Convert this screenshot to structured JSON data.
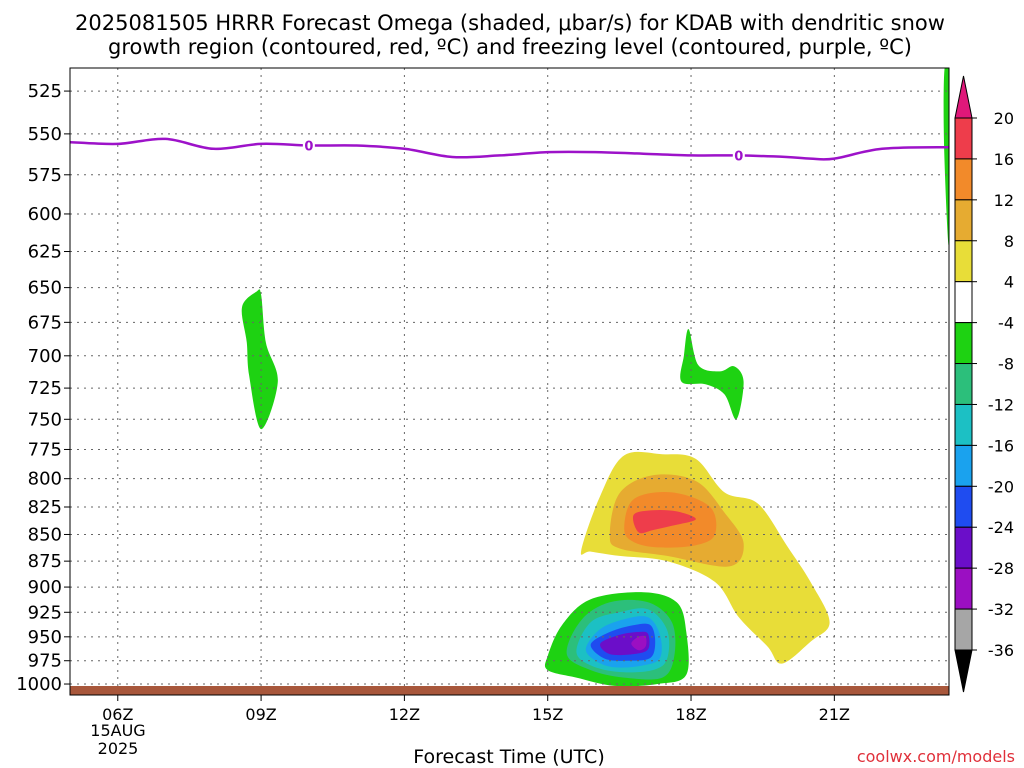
{
  "chart_data": {
    "type": "contour",
    "title_lines": [
      "2025081505 HRRR Forecast Omega (shaded, μbar/s) for KDAB with dendritic snow",
      "growth region (contoured, red, ºC) and freezing level (contoured, purple, ºC)"
    ],
    "xlabel": "Forecast Time (UTC)",
    "ylabel": "",
    "x_ticks": [
      "06Z",
      "09Z",
      "12Z",
      "15Z",
      "18Z",
      "21Z"
    ],
    "x_tick_hours": [
      6,
      9,
      12,
      15,
      18,
      21
    ],
    "x_date_label": [
      "15AUG",
      "2025"
    ],
    "x_range_hours": [
      5,
      23.4
    ],
    "y_ticks": [
      525,
      550,
      575,
      600,
      625,
      650,
      675,
      700,
      725,
      750,
      775,
      800,
      825,
      850,
      875,
      900,
      925,
      950,
      975,
      1000
    ],
    "y_range": [
      512,
      1012
    ],
    "y_scale": "log-pressure",
    "grid": true,
    "colorbar": {
      "levels": [
        "20",
        "16",
        "12",
        "8",
        "4",
        "-4",
        "-8",
        "-12",
        "-16",
        "-20",
        "-24",
        "-28",
        "-32",
        "-36"
      ],
      "colors": [
        "#ee3d4b",
        "#f28a2a",
        "#e6ab31",
        "#e8dd38",
        "#ffffff",
        "#1ed212",
        "#2cbf7b",
        "#1cc0c4",
        "#1aa2ee",
        "#1f4cf0",
        "#6b0ec9",
        "#9b0fc2",
        "#a6a6a6"
      ],
      "top_color": "#e0187a",
      "bottom_color": "#000000"
    },
    "freezing_level": {
      "label": "0",
      "color": "#9d12c9",
      "label_hours": [
        10,
        19
      ],
      "points": [
        [
          5,
          555
        ],
        [
          6,
          556
        ],
        [
          7,
          553
        ],
        [
          8,
          559
        ],
        [
          9,
          556
        ],
        [
          10,
          557
        ],
        [
          11,
          557
        ],
        [
          12,
          559
        ],
        [
          13,
          564
        ],
        [
          14,
          563
        ],
        [
          15,
          561
        ],
        [
          16,
          561
        ],
        [
          17,
          562
        ],
        [
          18,
          563
        ],
        [
          19,
          563
        ],
        [
          20,
          564
        ],
        [
          20.5,
          565
        ],
        [
          21,
          565
        ],
        [
          22,
          559
        ],
        [
          23.4,
          558
        ]
      ]
    },
    "omega_regions": [
      {
        "name": "green-09z",
        "value": "-4 to -8",
        "color": "#1ed212",
        "points": [
          [
            8.6,
            664
          ],
          [
            8.9,
            653
          ],
          [
            9.0,
            655
          ],
          [
            9.1,
            690
          ],
          [
            9.35,
            720
          ],
          [
            9.0,
            758
          ],
          [
            8.75,
            715
          ],
          [
            8.7,
            690
          ]
        ]
      },
      {
        "name": "green-18z",
        "value": "-4 to -8",
        "color": "#1ed212",
        "points": [
          [
            17.8,
            720
          ],
          [
            17.85,
            700
          ],
          [
            17.95,
            680
          ],
          [
            18.15,
            707
          ],
          [
            18.6,
            712
          ],
          [
            18.9,
            708
          ],
          [
            19.1,
            720
          ],
          [
            18.95,
            750
          ],
          [
            18.7,
            730
          ],
          [
            18.3,
            722
          ]
        ]
      },
      {
        "name": "green-top-right",
        "value": "-4 to -8",
        "color": "#1ed212",
        "points": [
          [
            23.3,
            515
          ],
          [
            23.4,
            512
          ],
          [
            23.4,
            620
          ],
          [
            23.3,
            560
          ]
        ]
      },
      {
        "name": "yellow-main",
        "value": "4 to 8",
        "color": "#e8dd38",
        "points": [
          [
            15.7,
            865
          ],
          [
            16.1,
            815
          ],
          [
            16.6,
            780
          ],
          [
            17.4,
            779
          ],
          [
            18.1,
            783
          ],
          [
            18.7,
            812
          ],
          [
            19.4,
            822
          ],
          [
            20,
            860
          ],
          [
            20.5,
            895
          ],
          [
            20.9,
            935
          ],
          [
            20.5,
            955
          ],
          [
            19.9,
            978
          ],
          [
            19.6,
            960
          ],
          [
            19.0,
            930
          ],
          [
            18.5,
            895
          ],
          [
            17.5,
            875
          ],
          [
            16.5,
            870
          ],
          [
            15.9,
            866
          ]
        ]
      },
      {
        "name": "orange-light",
        "value": "8 to 12",
        "color": "#e6ab31",
        "points": [
          [
            16.3,
            850
          ],
          [
            16.5,
            813
          ],
          [
            17.2,
            797
          ],
          [
            18.1,
            802
          ],
          [
            18.7,
            830
          ],
          [
            19.1,
            858
          ],
          [
            18.8,
            880
          ],
          [
            17.5,
            870
          ],
          [
            16.5,
            863
          ]
        ]
      },
      {
        "name": "orange-dark",
        "value": "12 to 16",
        "color": "#f28a2a",
        "points": [
          [
            16.6,
            845
          ],
          [
            16.8,
            818
          ],
          [
            17.6,
            812
          ],
          [
            18.4,
            825
          ],
          [
            18.5,
            850
          ],
          [
            18.1,
            860
          ],
          [
            17.3,
            862
          ],
          [
            16.8,
            857
          ]
        ]
      },
      {
        "name": "red-core",
        "value": "16 to 20",
        "color": "#ee3d4b",
        "points": [
          [
            16.8,
            832
          ],
          [
            17.2,
            828
          ],
          [
            17.7,
            829
          ],
          [
            18.1,
            836
          ],
          [
            17.6,
            842
          ],
          [
            17.2,
            846
          ],
          [
            16.9,
            848
          ]
        ]
      },
      {
        "name": "green-low",
        "value": "-4 to -8",
        "color": "#1ed212",
        "points": [
          [
            15.0,
            970
          ],
          [
            15.3,
            938
          ],
          [
            15.9,
            912
          ],
          [
            17.0,
            905
          ],
          [
            17.7,
            915
          ],
          [
            17.9,
            945
          ],
          [
            17.9,
            990
          ],
          [
            17.3,
            1000
          ],
          [
            16.4,
            1002
          ],
          [
            15.6,
            993
          ],
          [
            15.0,
            985
          ]
        ]
      },
      {
        "name": "teal-low",
        "value": "-8 to -12",
        "color": "#2cbf7b",
        "points": [
          [
            15.4,
            968
          ],
          [
            15.7,
            933
          ],
          [
            16.3,
            915
          ],
          [
            17.1,
            915
          ],
          [
            17.6,
            935
          ],
          [
            17.65,
            970
          ],
          [
            17.4,
            993
          ],
          [
            16.6,
            993
          ],
          [
            15.9,
            985
          ]
        ]
      },
      {
        "name": "cyan-low",
        "value": "-12 to -16",
        "color": "#1cc0c4",
        "points": [
          [
            15.6,
            965
          ],
          [
            15.9,
            935
          ],
          [
            16.5,
            925
          ],
          [
            17.1,
            922
          ],
          [
            17.5,
            943
          ],
          [
            17.5,
            973
          ],
          [
            17.2,
            985
          ],
          [
            16.5,
            987
          ],
          [
            15.9,
            980
          ]
        ]
      },
      {
        "name": "lightblue-low",
        "value": "-16 to -20",
        "color": "#1aa2ee",
        "points": [
          [
            15.8,
            962
          ],
          [
            16.1,
            942
          ],
          [
            16.6,
            932
          ],
          [
            17.1,
            930
          ],
          [
            17.35,
            948
          ],
          [
            17.35,
            972
          ],
          [
            17.0,
            980
          ],
          [
            16.4,
            982
          ],
          [
            16.0,
            975
          ]
        ]
      },
      {
        "name": "blue-low",
        "value": "-20 to -24",
        "color": "#1f4cf0",
        "points": [
          [
            15.9,
            958
          ],
          [
            16.3,
            945
          ],
          [
            16.8,
            938
          ],
          [
            17.15,
            938
          ],
          [
            17.25,
            955
          ],
          [
            17.15,
            972
          ],
          [
            16.7,
            975
          ],
          [
            16.2,
            973
          ]
        ]
      },
      {
        "name": "indigo-low",
        "value": "-24 to -28",
        "color": "#6b0ec9",
        "points": [
          [
            16.1,
            957
          ],
          [
            16.5,
            948
          ],
          [
            16.9,
            945
          ],
          [
            17.1,
            947
          ],
          [
            17.1,
            963
          ],
          [
            16.8,
            968
          ],
          [
            16.3,
            968
          ]
        ]
      },
      {
        "name": "purple-core",
        "value": "-28 to -32",
        "color": "#9b0fc2",
        "points": [
          [
            16.75,
            957
          ],
          [
            16.9,
            950
          ],
          [
            17.05,
            950
          ],
          [
            17.05,
            960
          ],
          [
            16.9,
            964
          ]
        ]
      }
    ],
    "ground_color": "#a8573b",
    "credit": "coolwx.com/models"
  }
}
